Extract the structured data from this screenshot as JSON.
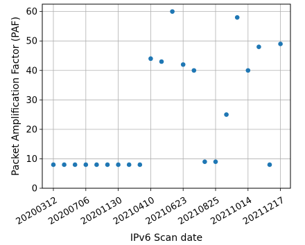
{
  "chart_data": {
    "type": "scatter",
    "title": "",
    "xlabel": "IPv6 Scan date",
    "ylabel": "Packet Amplification Factor (PAF)",
    "x_tick_labels": [
      "20200312",
      "20200706",
      "20201130",
      "20210410",
      "20210623",
      "20210825",
      "20211014",
      "20211217"
    ],
    "ylim": [
      0,
      62.5
    ],
    "y_ticks": [
      0,
      10,
      20,
      30,
      40,
      50,
      60
    ],
    "grid": true,
    "marker_color": "#1f77b4",
    "series": [
      {
        "values": [
          8,
          8,
          8,
          8,
          8,
          8,
          8,
          8,
          8,
          44,
          43,
          60,
          42,
          40,
          9,
          9,
          25,
          58,
          40,
          48,
          8,
          49
        ]
      }
    ]
  }
}
